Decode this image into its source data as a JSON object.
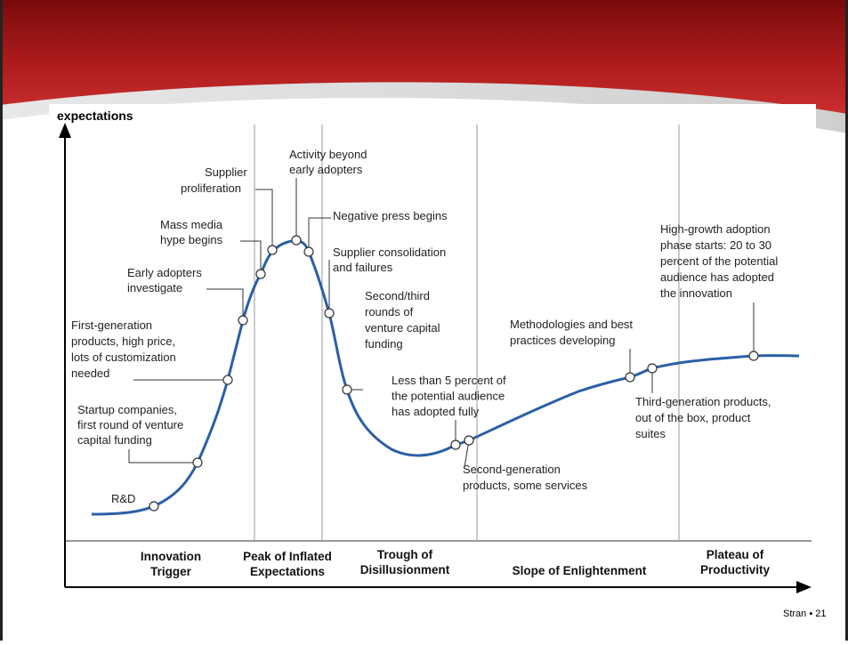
{
  "slide": {
    "diagram": {
      "y_axis_label": "expectations",
      "annotations": [
        {
          "lines": [
            "R&D"
          ]
        },
        {
          "lines": [
            "Startup companies,",
            "first round of venture",
            "capital funding"
          ]
        },
        {
          "lines": [
            "First-generation",
            "products, high price,",
            "lots of customization",
            "needed"
          ]
        },
        {
          "lines": [
            "Early adopters",
            "investigate"
          ]
        },
        {
          "lines": [
            "Mass media",
            "hype begins"
          ]
        },
        {
          "lines": [
            "Supplier",
            "proliferation"
          ]
        },
        {
          "lines": [
            "Activity beyond",
            "early adopters"
          ]
        },
        {
          "lines": [
            "Negative press begins"
          ]
        },
        {
          "lines": [
            "Supplier consolidation",
            "and failures"
          ]
        },
        {
          "lines": [
            "Second/third",
            "rounds of",
            "venture capital",
            "funding"
          ]
        },
        {
          "lines": [
            "Less than 5 percent of",
            "the potential audience",
            "has adopted fully"
          ]
        },
        {
          "lines": [
            "Second-generation",
            "products, some services"
          ]
        },
        {
          "lines": [
            "Methodologies and best",
            "practices developing"
          ]
        },
        {
          "lines": [
            "Third-generation products,",
            "out of the box, product",
            "suites"
          ]
        },
        {
          "lines": [
            "High-growth adoption",
            "phase starts: 20 to 30",
            "percent of the potential",
            "audience has adopted",
            "the innovation"
          ]
        }
      ],
      "phases": [
        {
          "lines": [
            "Innovation",
            "Trigger"
          ]
        },
        {
          "lines": [
            "Peak of Inflated",
            "Expectations"
          ]
        },
        {
          "lines": [
            "Trough of",
            "Disillusionment"
          ]
        },
        {
          "lines": [
            "Slope of Enlightenment"
          ]
        },
        {
          "lines": [
            "Plateau of",
            "Productivity"
          ]
        }
      ]
    },
    "footer": "Stran ▪ 21"
  }
}
